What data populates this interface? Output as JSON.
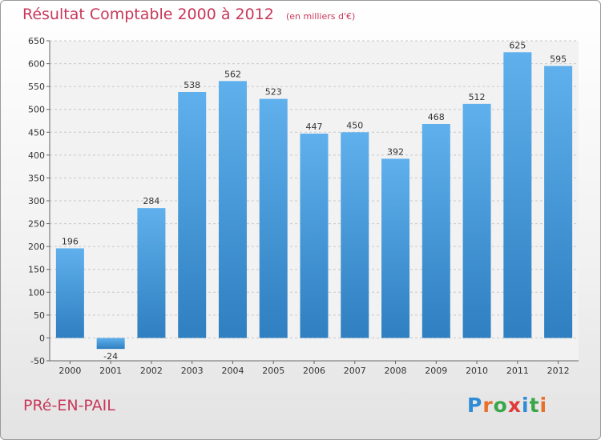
{
  "header": {
    "title": "Résultat Comptable 2000 à 2012",
    "subtitle": "(en milliers d'€)"
  },
  "footer": {
    "commune": "PRé-EN-PAIL",
    "logo": "Proxiti",
    "logo_colors": [
      "#2e8bd6",
      "#e8702a",
      "#3aa64a",
      "#e03c3c",
      "#2e8bd6",
      "#3aa64a",
      "#e8702a"
    ]
  },
  "colors": {
    "bar_light": "#5fb0ec",
    "bar_dark": "#2f7fc1",
    "grid": "#c8c8c8",
    "title": "#c8385a"
  },
  "chart_data": {
    "type": "bar",
    "title": "Résultat Comptable 2000 à 2012",
    "categories": [
      "2000",
      "2001",
      "2002",
      "2003",
      "2004",
      "2005",
      "2006",
      "2007",
      "2008",
      "2009",
      "2010",
      "2011",
      "2012"
    ],
    "values": [
      196,
      -24,
      284,
      538,
      562,
      523,
      447,
      450,
      392,
      468,
      512,
      625,
      595
    ],
    "ylim": [
      -50,
      650
    ],
    "yticks": [
      -50,
      0,
      50,
      100,
      150,
      200,
      250,
      300,
      350,
      400,
      450,
      500,
      550,
      600,
      650
    ],
    "grid": true,
    "legend": "none"
  }
}
